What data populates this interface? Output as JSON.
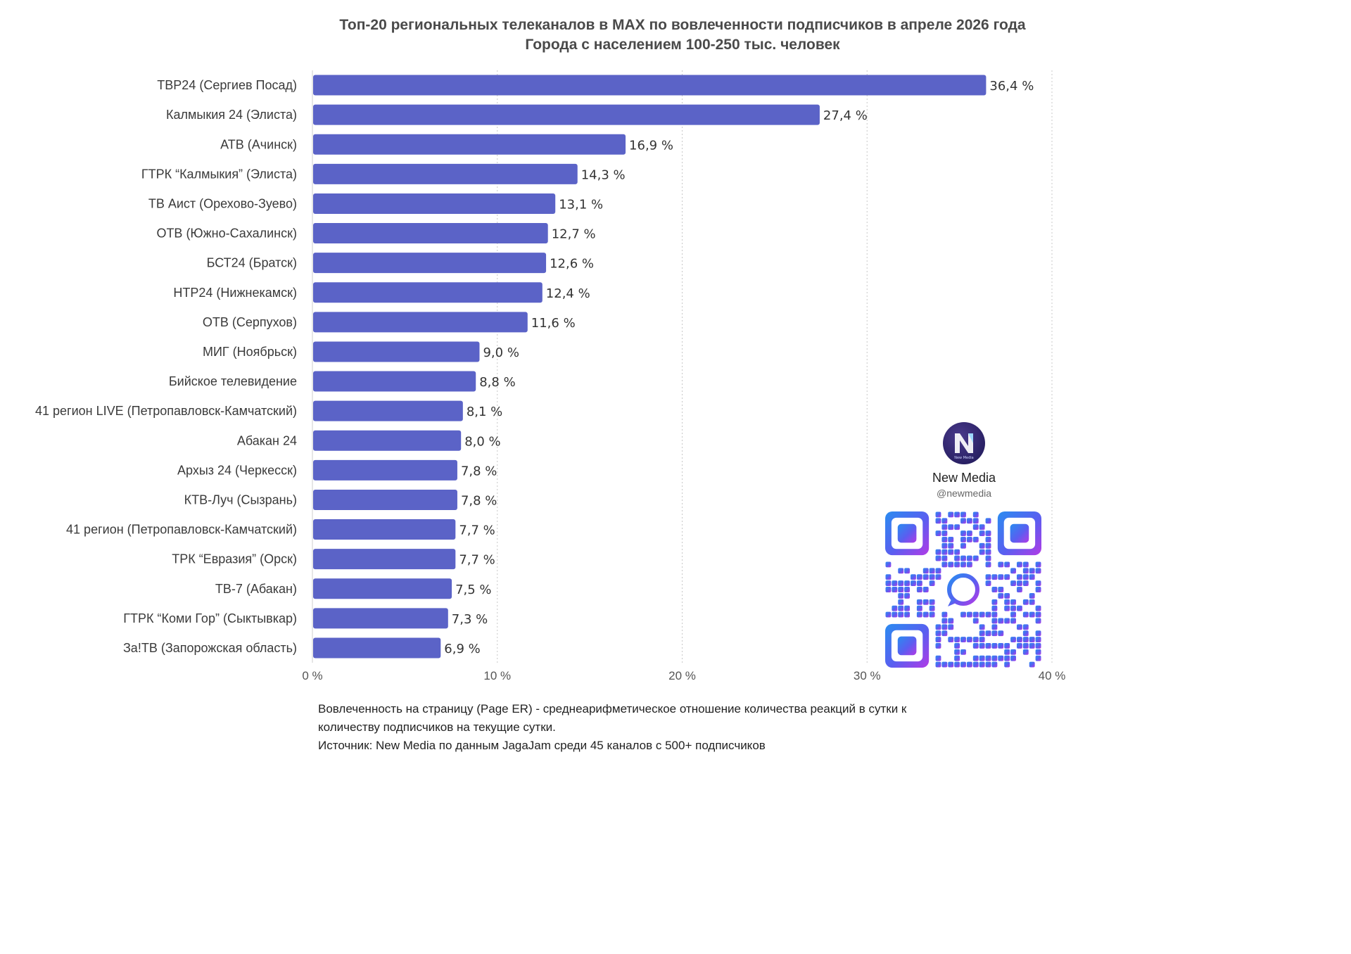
{
  "title_line1": "Топ-20 региональных телеканалов в MAX по вовлеченности подписчиков в апреле 2026 года",
  "title_line2": "Города с населением 100-250 тыс. человек",
  "chart_data": {
    "type": "bar",
    "orientation": "horizontal",
    "categories": [
      "ТВР24 (Сергиев Посад)",
      "Калмыкия 24 (Элиста)",
      "АТВ (Ачинск)",
      "ГТРК “Калмыкия” (Элиста)",
      "ТВ Аист (Орехово-Зуево)",
      "ОТВ (Южно-Сахалинск)",
      "БСТ24 (Братск)",
      "НТР24 (Нижнекамск)",
      "ОТВ (Серпухов)",
      "МИГ (Ноябрьск)",
      "Бийское телевидение",
      "41 регион LIVE (Петропавловск-Камчатский)",
      "Абакан 24",
      "Архыз 24 (Черкесск)",
      "КТВ-Луч (Сызрань)",
      "41 регион (Петропавловск-Камчатский)",
      "ТРК “Евразия” (Орск)",
      "ТВ-7 (Абакан)",
      "ГТРК “Коми Гор” (Сыктывкар)",
      "За!ТВ (Запорожская область)"
    ],
    "values": [
      36.4,
      27.4,
      16.9,
      14.3,
      13.1,
      12.7,
      12.6,
      12.4,
      11.6,
      9.0,
      8.8,
      8.1,
      8.0,
      7.8,
      7.8,
      7.7,
      7.7,
      7.5,
      7.3,
      6.9
    ],
    "value_labels": [
      "36,4 %",
      "27,4 %",
      "16,9 %",
      "14,3 %",
      "13,1 %",
      "12,7 %",
      "12,6 %",
      "12,4 %",
      "11,6 %",
      "9,0 %",
      "8,8 %",
      "8,1 %",
      "8,0 %",
      "7,8 %",
      "7,8 %",
      "7,7 %",
      "7,7 %",
      "7,5 %",
      "7,3 %",
      "6,9 %"
    ],
    "xlim": [
      0,
      40
    ],
    "xticks": [
      0,
      10,
      20,
      30,
      40
    ],
    "xtick_labels": [
      "0 %",
      "10 %",
      "20 %",
      "30 %",
      "40 %"
    ],
    "grid": "vertical dotted",
    "bar_color": "#5b63c7"
  },
  "footnote": {
    "line1": "Вовлеченность на страницу (Page ER) - среднеарифметическое отношение количества реакций в сутки к",
    "line2": "количеству подписчиков на текущие сутки.",
    "line3": "Источник: New Media по данным JagaJam среди 45 каналов с 500+ подписчиков"
  },
  "brand": {
    "name": "New Media",
    "handle": "@newmedia",
    "logo_text": "New Media"
  },
  "qr_icon": "qr-code-icon",
  "colors": {
    "bar": "#5b63c7",
    "grid": "#c8c8c8",
    "axis": "#cccccc"
  }
}
